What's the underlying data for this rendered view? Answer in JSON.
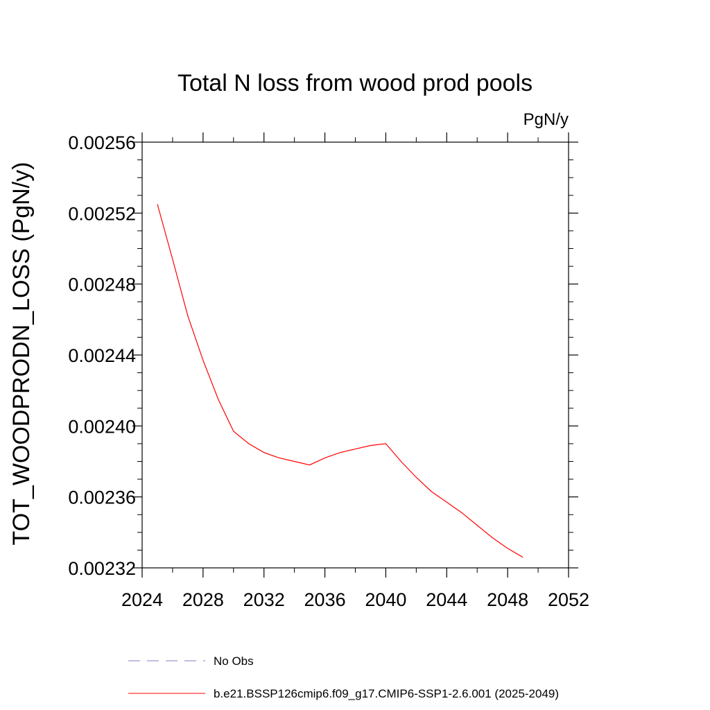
{
  "chart_data": {
    "type": "line",
    "title": "Total N loss from wood prod pools",
    "units_label": "PgN/y",
    "xlabel": "",
    "ylabel": "TOT_WOODPRODN_LOSS  (PgN/y)",
    "xlim": [
      2024,
      2052
    ],
    "ylim": [
      0.00232,
      0.00256
    ],
    "x_ticks": [
      "2024",
      "2028",
      "2032",
      "2036",
      "2040",
      "2044",
      "2048",
      "2052"
    ],
    "x_tick_values": [
      2024,
      2028,
      2032,
      2036,
      2040,
      2044,
      2048,
      2052
    ],
    "y_ticks": [
      "0.00232",
      "0.00236",
      "0.00240",
      "0.00244",
      "0.00248",
      "0.00252",
      "0.00256"
    ],
    "y_tick_values": [
      0.00232,
      0.00236,
      0.0024,
      0.00244,
      0.00248,
      0.00252,
      0.00256
    ],
    "grid": false,
    "legend_position": "bottom",
    "series": [
      {
        "name": "b.e21.BSSP126cmip6.f09_g17.CMIP6-SSP1-2.6.001 (2025-2049)",
        "color": "#ff0000",
        "style": "solid",
        "x": [
          2025,
          2026,
          2027,
          2028,
          2029,
          2030,
          2031,
          2032,
          2033,
          2034,
          2035,
          2036,
          2037,
          2038,
          2039,
          2040,
          2041,
          2042,
          2043,
          2044,
          2045,
          2046,
          2047,
          2048,
          2049
        ],
        "values": [
          0.002525,
          0.002494,
          0.002462,
          0.002437,
          0.002415,
          0.002397,
          0.00239,
          0.002385,
          0.002382,
          0.00238,
          0.002378,
          0.002382,
          0.002385,
          0.002387,
          0.002389,
          0.00239,
          0.00238,
          0.002371,
          0.002363,
          0.002357,
          0.002351,
          0.002344,
          0.002337,
          0.002331,
          0.002326
        ]
      }
    ],
    "legend": [
      {
        "label": "No Obs",
        "color": "#7f7fbf",
        "style": "dashed"
      },
      {
        "label": "b.e21.BSSP126cmip6.f09_g17.CMIP6-SSP1-2.6.001 (2025-2049)",
        "color": "#ff0000",
        "style": "solid"
      }
    ]
  }
}
